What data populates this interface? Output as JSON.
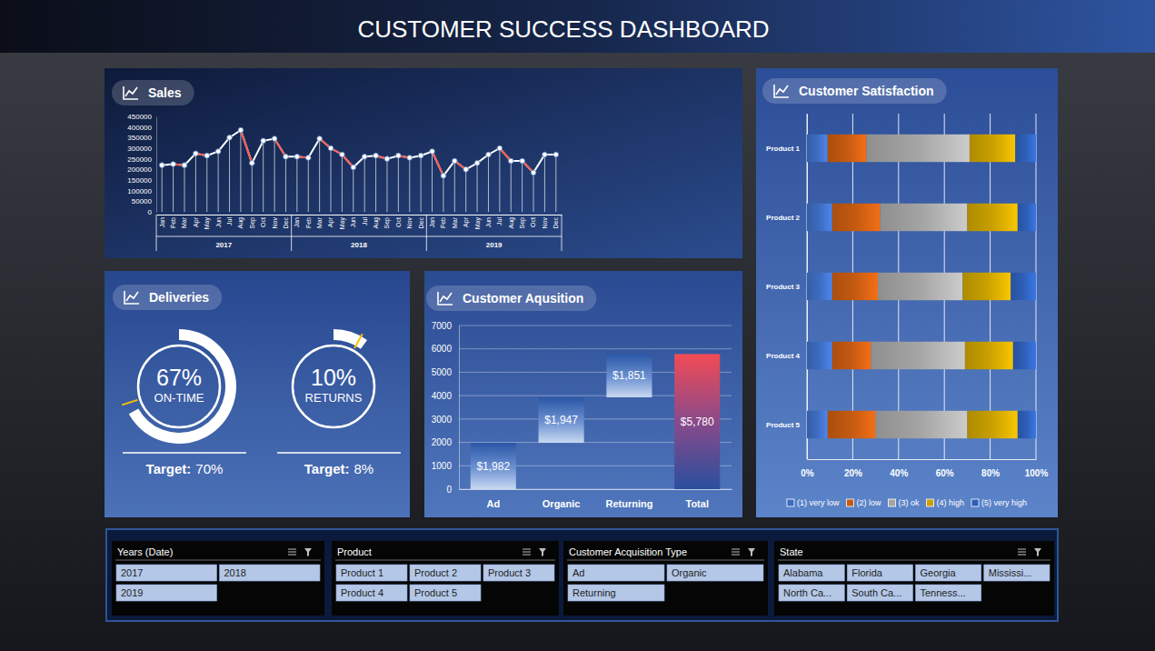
{
  "title": "CUSTOMER SUCCESS DASHBOARD",
  "chart_data": [
    {
      "type": "line",
      "title": "Sales",
      "categories": [
        "Jan",
        "Feb",
        "Mar",
        "Apr",
        "May",
        "Jun",
        "Jul",
        "Aug",
        "Sep",
        "Oct",
        "Nov",
        "Dec",
        "Jan",
        "Feb",
        "Mar",
        "Apr",
        "May",
        "Jun",
        "Jul",
        "Aug",
        "Sep",
        "Oct",
        "Nov",
        "Dec",
        "Jan",
        "Feb",
        "Mar",
        "Apr",
        "May",
        "Jun",
        "Jul",
        "Aug",
        "Sep",
        "Oct",
        "Nov",
        "Dec"
      ],
      "groups": [
        "2017",
        "2018",
        "2019"
      ],
      "values": [
        220000,
        225000,
        220000,
        275000,
        265000,
        285000,
        350000,
        385000,
        230000,
        335000,
        345000,
        260000,
        260000,
        255000,
        345000,
        300000,
        270000,
        210000,
        260000,
        265000,
        250000,
        265000,
        255000,
        265000,
        285000,
        170000,
        240000,
        200000,
        230000,
        270000,
        300000,
        240000,
        240000,
        185000,
        270000,
        270000
      ],
      "color": "#ffffff",
      "marker": "circle",
      "ylim": [
        0,
        450000
      ],
      "yticks": [
        0,
        50000,
        100000,
        150000,
        200000,
        250000,
        300000,
        350000,
        400000,
        450000
      ],
      "grid": false
    },
    {
      "type": "donut",
      "title": "Deliveries",
      "target_text": "Target:",
      "ylim": [
        0,
        100
      ],
      "series": [
        {
          "name": "ON-TIME",
          "values": [
            67
          ],
          "value_labels": [
            "67%"
          ],
          "target": 70,
          "target_label": "70%"
        },
        {
          "name": "RETURNS",
          "values": [
            10
          ],
          "value_labels": [
            "10%"
          ],
          "target": 8,
          "target_label": "8%"
        }
      ]
    },
    {
      "type": "waterfall",
      "title": "Customer Aqusition",
      "categories": [
        "Ad",
        "Organic",
        "Returning",
        "Total"
      ],
      "values": [
        1982,
        1947,
        1851,
        5780
      ],
      "value_labels": [
        "$1,982",
        "$1,947",
        "$1,851",
        "$5,780"
      ],
      "is_total": [
        false,
        false,
        false,
        true
      ],
      "data_labels": true,
      "ylim": [
        0,
        7000
      ],
      "yticks": [
        0,
        1000,
        2000,
        3000,
        4000,
        5000,
        6000,
        7000
      ],
      "grid": true
    },
    {
      "type": "bar",
      "orientation": "horizontal",
      "stacked": true,
      "title": "Customer Satisfaction",
      "categories": [
        "Product 1",
        "Product 2",
        "Product 3",
        "Product 4",
        "Product 5"
      ],
      "series": [
        {
          "name": "(1) very low",
          "color": "#3d6cc0",
          "values": [
            9,
            11,
            11,
            11,
            9
          ]
        },
        {
          "name": "(2) low",
          "color": "#c55a11",
          "values": [
            17,
            21,
            20,
            17,
            21
          ]
        },
        {
          "name": "(3) ok",
          "color": "#a5a5a5",
          "values": [
            45,
            38,
            37,
            41,
            40
          ]
        },
        {
          "name": "(4) high",
          "color": "#c9a000",
          "values": [
            20,
            22,
            21,
            21,
            22
          ]
        },
        {
          "name": "(5) very high",
          "color": "#2e5fb8",
          "values": [
            9,
            8,
            11,
            10,
            8
          ]
        }
      ],
      "xlim": [
        0,
        100
      ],
      "xticks": [
        {
          "value": 0,
          "label": "0%"
        },
        {
          "value": 20,
          "label": "20%"
        },
        {
          "value": 40,
          "label": "40%"
        },
        {
          "value": 60,
          "label": "60%"
        },
        {
          "value": 80,
          "label": "80%"
        },
        {
          "value": 100,
          "label": "100%"
        }
      ],
      "grid": true,
      "legend": "bottom"
    }
  ],
  "slicers": [
    {
      "title": "Years (Date)",
      "items": [
        "2017",
        "2018",
        "2019"
      ]
    },
    {
      "title": "Product",
      "items": [
        "Product 1",
        "Product 2",
        "Product 3",
        "Product 4",
        "Product 5"
      ]
    },
    {
      "title": "Customer Acquisition Type",
      "items": [
        "Ad",
        "Organic",
        "Returning"
      ]
    },
    {
      "title": "State",
      "items": [
        "Alabama",
        "Florida",
        "Georgia",
        "Mississi...",
        "North Ca...",
        "South Ca...",
        "Tenness..."
      ]
    }
  ]
}
